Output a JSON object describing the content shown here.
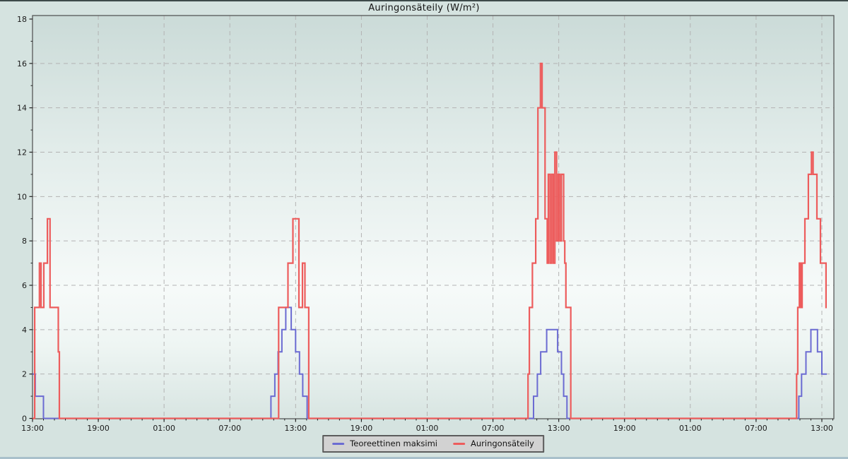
{
  "chart_data": {
    "type": "line",
    "title": "Auringonsäteily (W/m²)",
    "xlabel": "",
    "ylabel": "",
    "ylim": [
      0,
      18
    ],
    "y_tick_labels": [
      "0",
      "2",
      "4",
      "6",
      "8",
      "10",
      "12",
      "14",
      "16",
      "18"
    ],
    "y_minor_ticks": [
      1,
      3,
      5,
      7,
      9,
      11,
      13,
      15,
      17
    ],
    "x_tick_labels": [
      "13:00",
      "19:00",
      "01:00",
      "07:00",
      "13:00",
      "19:00",
      "01:00",
      "07:00",
      "13:00",
      "19:00",
      "01:00",
      "07:00",
      "13:00"
    ],
    "x_major_interval_hours": 6,
    "x_minor_interval_hours": 1,
    "x_total_hours": 73.1,
    "grid": "dashed gray at major ticks, both axes",
    "legend_position": "bottom-center",
    "series": [
      {
        "name": "Teoreettinen maksimi",
        "color": "#6b6bd2",
        "end_hour": 72.45,
        "step_points_hour_value": [
          [
            0,
            2
          ],
          [
            0.25,
            1
          ],
          [
            1.0,
            0
          ],
          [
            21.75,
            1
          ],
          [
            22.1,
            2
          ],
          [
            22.4,
            3
          ],
          [
            22.75,
            4
          ],
          [
            23.1,
            5
          ],
          [
            23.6,
            4
          ],
          [
            24.0,
            3
          ],
          [
            24.35,
            2
          ],
          [
            24.65,
            1
          ],
          [
            25.05,
            0
          ],
          [
            45.7,
            1
          ],
          [
            46.05,
            2
          ],
          [
            46.35,
            3
          ],
          [
            46.9,
            4
          ],
          [
            47.9,
            3
          ],
          [
            48.25,
            2
          ],
          [
            48.45,
            1
          ],
          [
            48.75,
            0
          ],
          [
            69.9,
            1
          ],
          [
            70.15,
            2
          ],
          [
            70.55,
            3
          ],
          [
            71.0,
            4
          ],
          [
            71.6,
            3
          ],
          [
            72.0,
            2
          ]
        ]
      },
      {
        "name": "Auringonsäteily",
        "color": "#ed5c5c",
        "end_hour": 72.45,
        "step_points_hour_value": [
          [
            0,
            0
          ],
          [
            0.2,
            5
          ],
          [
            0.63,
            7
          ],
          [
            0.78,
            5
          ],
          [
            1.03,
            7
          ],
          [
            1.36,
            9
          ],
          [
            1.6,
            5
          ],
          [
            2.35,
            3
          ],
          [
            2.45,
            0
          ],
          [
            22.45,
            5
          ],
          [
            23.3,
            7
          ],
          [
            23.75,
            9
          ],
          [
            24.3,
            5
          ],
          [
            24.62,
            7
          ],
          [
            24.85,
            5
          ],
          [
            25.2,
            0
          ],
          [
            45.2,
            2
          ],
          [
            45.32,
            5
          ],
          [
            45.6,
            7
          ],
          [
            45.9,
            9
          ],
          [
            46.1,
            14
          ],
          [
            46.33,
            16
          ],
          [
            46.48,
            14
          ],
          [
            46.75,
            9
          ],
          [
            46.95,
            7
          ],
          [
            47.05,
            11
          ],
          [
            47.2,
            7
          ],
          [
            47.35,
            11
          ],
          [
            47.5,
            7
          ],
          [
            47.65,
            12
          ],
          [
            47.8,
            8
          ],
          [
            47.95,
            11
          ],
          [
            48.1,
            8
          ],
          [
            48.25,
            11
          ],
          [
            48.45,
            8
          ],
          [
            48.55,
            7
          ],
          [
            48.65,
            5
          ],
          [
            49.1,
            0
          ],
          [
            69.7,
            2
          ],
          [
            69.8,
            5
          ],
          [
            69.95,
            7
          ],
          [
            70.08,
            5
          ],
          [
            70.2,
            7
          ],
          [
            70.45,
            9
          ],
          [
            70.77,
            11
          ],
          [
            71.05,
            12
          ],
          [
            71.2,
            11
          ],
          [
            71.55,
            9
          ],
          [
            71.87,
            7
          ],
          [
            72.38,
            5
          ]
        ]
      }
    ]
  },
  "colors": {
    "figure_background": "#d5e3e0",
    "plot_gradient_top": "#cbdbd8",
    "plot_gradient_middle": "#f6faf9",
    "plot_gradient_bottom": "#d8e5e2",
    "frame": "#4d4d4d",
    "gridline": "#b3b3b3",
    "tick_label": "#1a1a1a",
    "legend_background": "#d2d2d2",
    "legend_border": "#5c5c5c",
    "top_border": "#3d4a4a",
    "bottom_strip": "#a9c0cb"
  }
}
